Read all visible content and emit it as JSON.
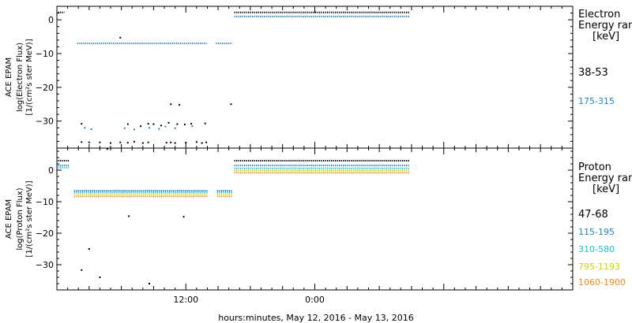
{
  "xlabel": "hours:minutes, May 12, 2016 - May 13, 2016",
  "x_tick_labels": [
    "12:00",
    "0:00"
  ],
  "chart_data": [
    {
      "type": "scatter",
      "title": "Electron",
      "ylabel": [
        "ACE EPAM",
        "log(Electron Flux)",
        "[1/(cm²s ster MeV)]"
      ],
      "legend_title": [
        "Electron",
        "Energy ran",
        "[keV]"
      ],
      "x_unit": "hours since May 12, 2016 00:00",
      "xlim": [
        0,
        48
      ],
      "ylim": [
        -38,
        4
      ],
      "yticks": [
        0,
        -10,
        -20,
        -30
      ],
      "ytick_labels": [
        "0",
        "−10",
        "−20",
        "−30"
      ],
      "series": [
        {
          "name": "38-53",
          "color": "#000000",
          "segments": [
            {
              "x": [
                0.1,
                0.7
              ],
              "y": [
                2.2,
                2.2
              ]
            },
            {
              "x": [
                16.5,
                32.8
              ],
              "y": [
                2.2,
                2.2
              ]
            }
          ],
          "points": [
            [
              2.3,
              -36.2
            ],
            [
              3.0,
              -36.3
            ],
            [
              4.0,
              -36.3
            ],
            [
              5.0,
              -36.5
            ],
            [
              5.9,
              -36.3
            ],
            [
              6.6,
              -36.4
            ],
            [
              7.2,
              -36.1
            ],
            [
              8.0,
              -36.5
            ],
            [
              8.5,
              -36.3
            ],
            [
              10.2,
              -36.4
            ],
            [
              10.6,
              -36.3
            ],
            [
              11.0,
              -36.5
            ],
            [
              12.0,
              -36.4
            ],
            [
              13.0,
              -36.2
            ],
            [
              13.5,
              -36.5
            ],
            [
              13.9,
              -36.3
            ],
            [
              2.3,
              -30.8
            ],
            [
              6.6,
              -30.9
            ],
            [
              7.8,
              -31.5
            ],
            [
              8.5,
              -30.8
            ],
            [
              9.0,
              -30.9
            ],
            [
              9.7,
              -31.3
            ],
            [
              10.4,
              -30.5
            ],
            [
              11.2,
              -30.9
            ],
            [
              11.9,
              -31.0
            ],
            [
              12.5,
              -30.8
            ],
            [
              13.8,
              -30.7
            ],
            [
              10.6,
              -25.0
            ],
            [
              11.4,
              -25.2
            ],
            [
              16.2,
              -25.0
            ],
            [
              5.9,
              -5.3
            ]
          ]
        },
        {
          "name": "175-315",
          "color": "#1f88c8",
          "segments": [
            {
              "x": [
                1.9,
                14.0
              ],
              "y": [
                -7.0,
                -7.0
              ]
            },
            {
              "x": [
                14.8,
                16.3
              ],
              "y": [
                -7.0,
                -7.0
              ]
            },
            {
              "x": [
                16.5,
                32.8
              ],
              "y": [
                1.0,
                1.0
              ]
            }
          ],
          "points": [
            [
              2.6,
              -32.0
            ],
            [
              3.2,
              -32.4
            ],
            [
              6.3,
              -32.1
            ],
            [
              7.2,
              -32.5
            ],
            [
              8.6,
              -32.0
            ],
            [
              9.5,
              -32.3
            ],
            [
              10.1,
              -31.6
            ],
            [
              11.0,
              -32.1
            ],
            [
              12.6,
              -31.5
            ]
          ]
        }
      ]
    },
    {
      "type": "scatter",
      "title": "Proton",
      "ylabel": [
        "ACE EPAM",
        "log(Proton Flux)",
        "[1/(cm²s ster MeV)]"
      ],
      "legend_title": [
        "Proton",
        "Energy ran",
        "[keV]"
      ],
      "x_unit": "hours since May 12, 2016 00:00",
      "xlim": [
        0,
        48
      ],
      "ylim": [
        -38,
        7
      ],
      "yticks": [
        0,
        -10,
        -20,
        -30
      ],
      "ytick_labels": [
        "0",
        "−10",
        "−20",
        "−30"
      ],
      "series": [
        {
          "name": "47-68",
          "color": "#000000",
          "segments": [
            {
              "x": [
                0.1,
                1.2
              ],
              "y": [
                3.0,
                3.0
              ]
            },
            {
              "x": [
                16.5,
                32.8
              ],
              "y": [
                3.0,
                3.0
              ]
            }
          ],
          "points": [
            [
              4.7,
              6.7
            ],
            [
              3.0,
              -25.0
            ],
            [
              2.3,
              -31.7
            ],
            [
              4.0,
              -34.0
            ],
            [
              6.7,
              -14.6
            ],
            [
              11.8,
              -14.8
            ],
            [
              8.6,
              -36.0
            ]
          ]
        },
        {
          "name": "115-195",
          "color": "#1f88c8",
          "segments": [
            {
              "x": [
                0.1,
                1.2
              ],
              "y": [
                1.5,
                1.5
              ]
            },
            {
              "x": [
                1.6,
                14.0
              ],
              "y": [
                -6.5,
                -6.5
              ]
            },
            {
              "x": [
                14.9,
                16.3
              ],
              "y": [
                -6.5,
                -6.5
              ]
            },
            {
              "x": [
                16.5,
                32.8
              ],
              "y": [
                1.5,
                1.5
              ]
            }
          ],
          "points": []
        },
        {
          "name": "310-580",
          "color": "#1ec0d6",
          "segments": [
            {
              "x": [
                0.1,
                1.2
              ],
              "y": [
                0.8,
                0.8
              ]
            },
            {
              "x": [
                1.6,
                14.0
              ],
              "y": [
                -7.0,
                -7.0
              ]
            },
            {
              "x": [
                14.9,
                16.3
              ],
              "y": [
                -7.0,
                -7.0
              ]
            },
            {
              "x": [
                16.5,
                32.8
              ],
              "y": [
                0.6,
                0.6
              ]
            }
          ],
          "points": []
        },
        {
          "name": "795-1193",
          "color": "#c8d400",
          "segments": [
            {
              "x": [
                1.6,
                14.0
              ],
              "y": [
                -7.6,
                -7.6
              ]
            },
            {
              "x": [
                14.9,
                16.3
              ],
              "y": [
                -7.6,
                -7.6
              ]
            },
            {
              "x": [
                16.5,
                32.8
              ],
              "y": [
                -0.1,
                -0.1
              ]
            }
          ],
          "points": []
        },
        {
          "name": "1060-1900",
          "color": "#f08a12",
          "segments": [
            {
              "x": [
                1.6,
                14.0
              ],
              "y": [
                -8.3,
                -8.3
              ]
            },
            {
              "x": [
                14.9,
                16.3
              ],
              "y": [
                -8.3,
                -8.3
              ]
            },
            {
              "x": [
                16.5,
                32.8
              ],
              "y": [
                -0.8,
                -0.8
              ]
            }
          ],
          "points": []
        }
      ]
    }
  ]
}
